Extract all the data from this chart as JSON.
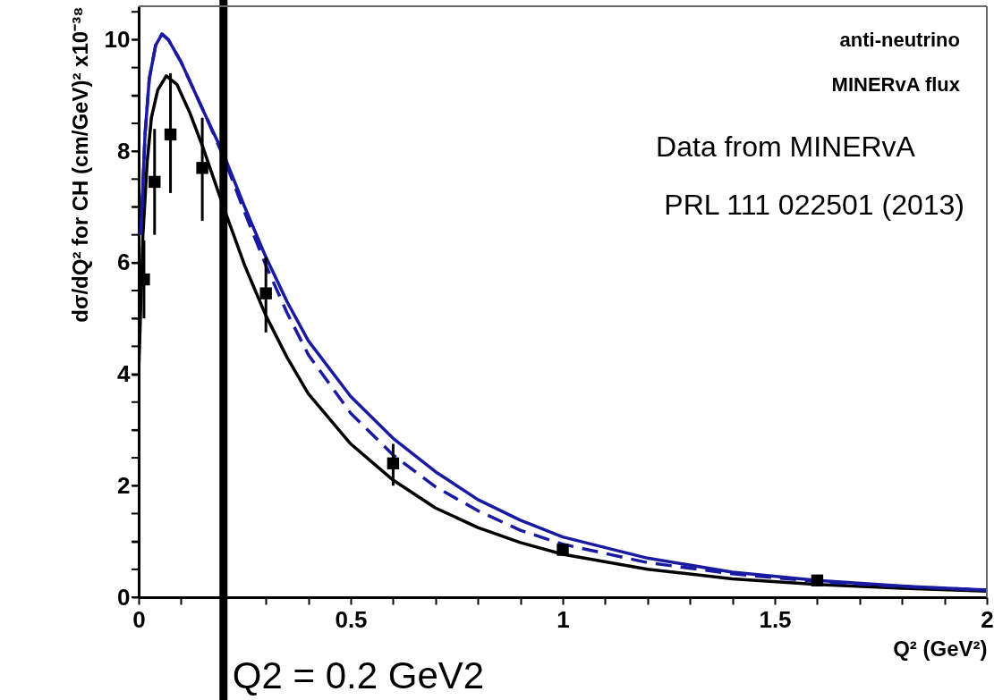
{
  "chart_data": {
    "type": "line",
    "xlabel": "Q² (GeV²)",
    "ylabel": "dσ/dQ² for CH (cm/GeV)² x10⁻³⁸",
    "xlim": [
      0,
      2
    ],
    "ylim": [
      0,
      10.6
    ],
    "xticks": [
      0,
      {
        "value": 0.1,
        "label": null
      },
      {
        "value": 0.2,
        "label": null
      },
      {
        "value": 0.3,
        "label": null
      },
      {
        "value": 0.4,
        "label": null
      },
      0.5,
      {
        "value": 0.6,
        "label": null
      },
      {
        "value": 0.7,
        "label": null
      },
      {
        "value": 0.8,
        "label": null
      },
      {
        "value": 0.9,
        "label": null
      },
      1,
      {
        "value": 1.1,
        "label": null
      },
      {
        "value": 1.2,
        "label": null
      },
      {
        "value": 1.3,
        "label": null
      },
      {
        "value": 1.4,
        "label": null
      },
      1.5,
      {
        "value": 1.6,
        "label": null
      },
      {
        "value": 1.7,
        "label": null
      },
      {
        "value": 1.8,
        "label": null
      },
      {
        "value": 1.9,
        "label": null
      },
      2
    ],
    "yticks": [
      0,
      {
        "value": 0.5,
        "label": null
      },
      {
        "value": 1,
        "label": null
      },
      {
        "value": 1.5,
        "label": null
      },
      2,
      {
        "value": 2.5,
        "label": null
      },
      {
        "value": 3,
        "label": null
      },
      {
        "value": 3.5,
        "label": null
      },
      4,
      {
        "value": 4.5,
        "label": null
      },
      {
        "value": 5,
        "label": null
      },
      {
        "value": 5.5,
        "label": null
      },
      6,
      {
        "value": 6.5,
        "label": null
      },
      {
        "value": 7,
        "label": null
      },
      {
        "value": 7.5,
        "label": null
      },
      8,
      {
        "value": 8.5,
        "label": null
      },
      {
        "value": 9,
        "label": null
      },
      {
        "value": 9.5,
        "label": null
      },
      10,
      {
        "value": 10.5,
        "label": null
      }
    ],
    "grid": false,
    "annotations": [
      "anti-neutrino",
      "MINERvA flux",
      "Data from MINERvA",
      "PRL 111 022501 (2013)"
    ],
    "ref_lines": [
      {
        "axis": "x",
        "value": 0.2,
        "label": "Q2 = 0.2 GeV2",
        "color": "#000000"
      }
    ],
    "series": [
      {
        "color": "#000000",
        "line_style": "solid",
        "x": [
          0,
          0.01,
          0.02,
          0.03,
          0.045,
          0.065,
          0.09,
          0.12,
          0.15,
          0.2,
          0.25,
          0.3,
          0.35,
          0.4,
          0.5,
          0.6,
          0.7,
          0.8,
          0.9,
          1.0,
          1.2,
          1.4,
          1.6,
          1.8,
          2.0
        ],
        "values": [
          4.0,
          6.5,
          7.8,
          8.6,
          9.1,
          9.35,
          9.2,
          8.7,
          8.1,
          7.0,
          5.95,
          5.05,
          4.3,
          3.65,
          2.75,
          2.1,
          1.6,
          1.25,
          0.98,
          0.77,
          0.5,
          0.33,
          0.23,
          0.16,
          0.11
        ]
      },
      {
        "color": "#1a1aa0",
        "line_style": "dashed",
        "x": [
          0.005,
          0.015,
          0.025,
          0.04,
          0.055,
          0.07,
          0.1,
          0.13,
          0.16,
          0.2,
          0.25,
          0.3,
          0.35,
          0.4,
          0.5,
          0.6,
          0.7,
          0.8,
          0.9,
          1.0,
          1.2,
          1.4,
          1.6,
          1.8,
          2.0
        ],
        "values": [
          6.5,
          8.3,
          9.3,
          9.9,
          10.1,
          10.0,
          9.6,
          9.1,
          8.6,
          7.9,
          6.9,
          5.95,
          5.1,
          4.35,
          3.3,
          2.55,
          1.98,
          1.55,
          1.2,
          0.95,
          0.62,
          0.42,
          0.28,
          0.19,
          0.13
        ]
      },
      {
        "color": "#1a1aa0",
        "line_style": "solid",
        "x": [
          0.005,
          0.015,
          0.025,
          0.04,
          0.055,
          0.07,
          0.1,
          0.13,
          0.16,
          0.2,
          0.25,
          0.3,
          0.35,
          0.4,
          0.5,
          0.6,
          0.7,
          0.8,
          0.9,
          1.0,
          1.2,
          1.4,
          1.6,
          1.8,
          2.0
        ],
        "values": [
          6.5,
          8.3,
          9.3,
          9.9,
          10.1,
          10.0,
          9.6,
          9.1,
          8.6,
          7.95,
          7.0,
          6.1,
          5.3,
          4.6,
          3.6,
          2.85,
          2.25,
          1.75,
          1.38,
          1.08,
          0.7,
          0.45,
          0.3,
          0.2,
          0.13
        ]
      },
      {
        "type": "scatter",
        "color": "#000000",
        "marker": "square",
        "x": [
          0.0125,
          0.0375,
          0.075,
          0.15,
          0.3,
          0.6,
          1.0,
          1.6
        ],
        "values": [
          5.7,
          7.45,
          8.3,
          7.7,
          5.45,
          2.4,
          0.85,
          0.3
        ],
        "errors": [
          [
            5.0,
            6.4
          ],
          [
            6.5,
            8.4
          ],
          [
            7.25,
            9.4
          ],
          [
            6.75,
            8.6
          ],
          [
            4.75,
            6.1
          ],
          [
            2.0,
            2.75
          ],
          [
            0.75,
            0.95
          ],
          null
        ]
      }
    ]
  }
}
